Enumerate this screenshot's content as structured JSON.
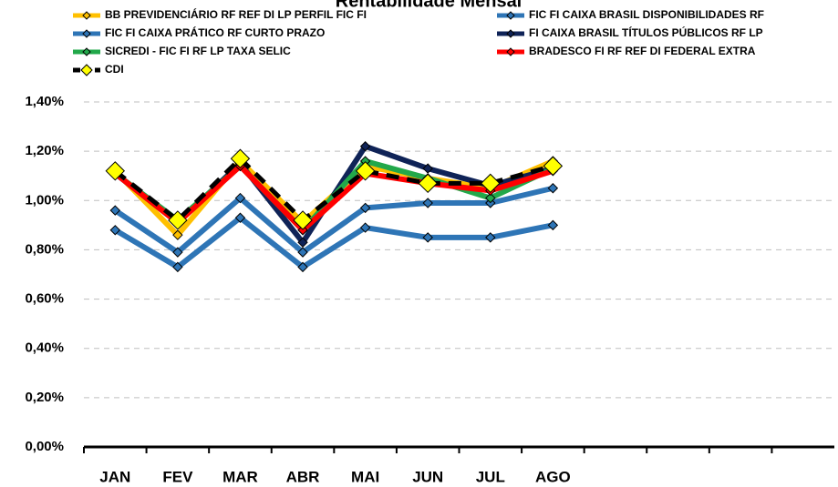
{
  "chart_data": {
    "type": "line",
    "title": "Rentabilidade Mensal",
    "categories": [
      "JAN",
      "FEV",
      "MAR",
      "ABR",
      "MAI",
      "JUN",
      "JUL",
      "AGO",
      null,
      null,
      null,
      null
    ],
    "series": [
      {
        "name": "BB PREVIDENCIÁRIO RF REF DI LP PERFIL FIC FI",
        "color": "#ffc000",
        "values": [
          1.12,
          0.86,
          1.16,
          0.91,
          1.14,
          1.09,
          1.05,
          1.16,
          null,
          null,
          null,
          null
        ]
      },
      {
        "name": "FIC FI CAIXA BRASIL DISPONIBILIDADES RF",
        "color": "#2e75b6",
        "values": [
          0.88,
          0.73,
          0.93,
          0.73,
          0.89,
          0.85,
          0.85,
          0.9,
          null,
          null,
          null,
          null
        ]
      },
      {
        "name": "FIC FI CAIXA PRÁTICO RF CURTO PRAZO",
        "color": "#2e75b6",
        "values": [
          0.96,
          0.79,
          1.01,
          0.79,
          0.97,
          0.99,
          0.99,
          1.05,
          null,
          null,
          null,
          null
        ]
      },
      {
        "name": "FI CAIXA BRASIL TÍTULOS PÚBLICOS RF LP",
        "color": "#0f2357",
        "values": [
          1.11,
          0.91,
          1.15,
          0.83,
          1.22,
          1.13,
          1.06,
          1.13,
          null,
          null,
          null,
          null
        ]
      },
      {
        "name": "SICREDI - FIC FI RF LP TAXA SELIC",
        "color": "#22a84a",
        "values": [
          1.11,
          0.92,
          1.14,
          0.88,
          1.16,
          1.09,
          1.01,
          1.13,
          null,
          null,
          null,
          null
        ]
      },
      {
        "name": "BRADESCO FI RF REF DI FEDERAL EXTRA",
        "color": "#ff0000",
        "values": [
          1.11,
          0.91,
          1.14,
          0.88,
          1.11,
          1.07,
          1.04,
          1.12,
          null,
          null,
          null,
          null
        ]
      },
      {
        "name": "CDI",
        "color": "#000000",
        "dashed": true,
        "marker_color": "#ffff00",
        "values": [
          1.12,
          0.92,
          1.17,
          0.92,
          1.12,
          1.07,
          1.07,
          1.14,
          null,
          null,
          null,
          null
        ]
      }
    ],
    "ylim": [
      0,
      1.4
    ],
    "yticks": [
      {
        "value": 0,
        "label": "0,00%"
      },
      {
        "value": 0.2,
        "label": "0,20%"
      },
      {
        "value": 0.4,
        "label": "0,40%"
      },
      {
        "value": 0.6,
        "label": "0,60%"
      },
      {
        "value": 0.8,
        "label": "0,80%"
      },
      {
        "value": 1.0,
        "label": "1,00%"
      },
      {
        "value": 1.2,
        "label": "1,20%"
      },
      {
        "value": 1.4,
        "label": "1,40%"
      }
    ],
    "grid": true
  }
}
